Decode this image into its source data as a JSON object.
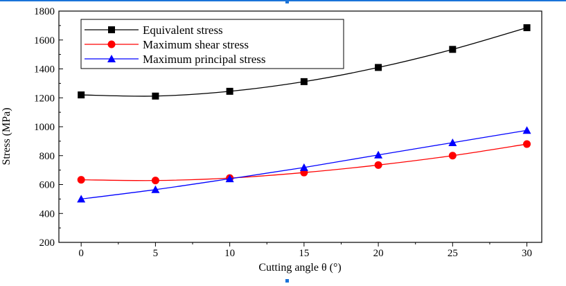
{
  "colors": {
    "accent_bar": "#1a73d9"
  },
  "chart_data": {
    "type": "line",
    "title": "",
    "xlabel": "Cutting angle θ (°)",
    "ylabel": "Stress (MPa)",
    "x": [
      0,
      5,
      10,
      15,
      20,
      25,
      30
    ],
    "xlim": [
      -1.5,
      31
    ],
    "ylim": [
      200,
      1800
    ],
    "x_ticks": [
      "0",
      "5",
      "10",
      "15",
      "20",
      "25",
      "30"
    ],
    "y_ticks": [
      "200",
      "400",
      "600",
      "800",
      "1000",
      "1200",
      "1400",
      "1600",
      "1800"
    ],
    "grid": false,
    "legend_position": "top-left",
    "series": [
      {
        "name": "Equivalent stress",
        "color": "#000000",
        "marker": "square",
        "values": [
          1220,
          1212,
          1245,
          1312,
          1410,
          1535,
          1685
        ]
      },
      {
        "name": "Maximum shear stress",
        "color": "#ff0000",
        "marker": "circle",
        "values": [
          633,
          628,
          645,
          683,
          735,
          800,
          880
        ]
      },
      {
        "name": "Maximum principal stress",
        "color": "#0000ff",
        "marker": "triangle",
        "values": [
          500,
          565,
          640,
          718,
          805,
          890,
          975
        ]
      }
    ]
  }
}
